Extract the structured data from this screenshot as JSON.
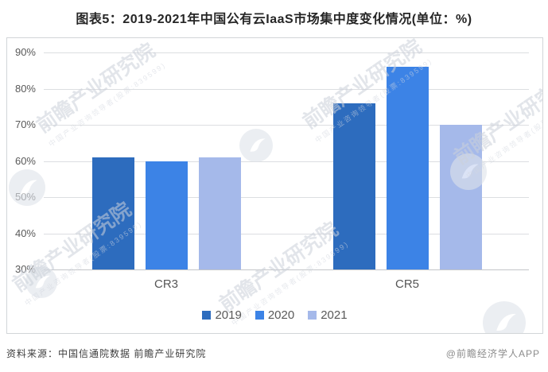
{
  "page": {
    "title": "图表5：2019-2021年中国公有云IaaS市场集中度变化情况(单位：%)",
    "source_note": "资料来源：中国信通院数据 前瞻产业研究院",
    "credit": "@前瞻经济学人APP"
  },
  "watermark": {
    "text": "前瞻产业研究院",
    "subtext": "中国产业咨询领导者(股票:839599)"
  },
  "chart_data": {
    "type": "bar",
    "title": "图表5：2019-2021年中国公有云IaaS市场集中度变化情况(单位：%)",
    "categories": [
      "CR3",
      "CR5"
    ],
    "series": [
      {
        "name": "2019",
        "color": "#2d6cbe",
        "values": [
          61,
          76
        ]
      },
      {
        "name": "2020",
        "color": "#3c83e6",
        "values": [
          60,
          86
        ]
      },
      {
        "name": "2021",
        "color": "#a5b9ea",
        "values": [
          61,
          70
        ]
      }
    ],
    "unit": "%",
    "xlabel": "",
    "ylabel": "",
    "y_axis": {
      "min": 30,
      "max": 90,
      "ticks": [
        "90%",
        "80%",
        "70%",
        "60%",
        "50%",
        "40%",
        "30%"
      ],
      "tick_values": [
        90,
        80,
        70,
        60,
        50,
        40,
        30
      ]
    },
    "grid": true,
    "legend_position": "bottom"
  }
}
